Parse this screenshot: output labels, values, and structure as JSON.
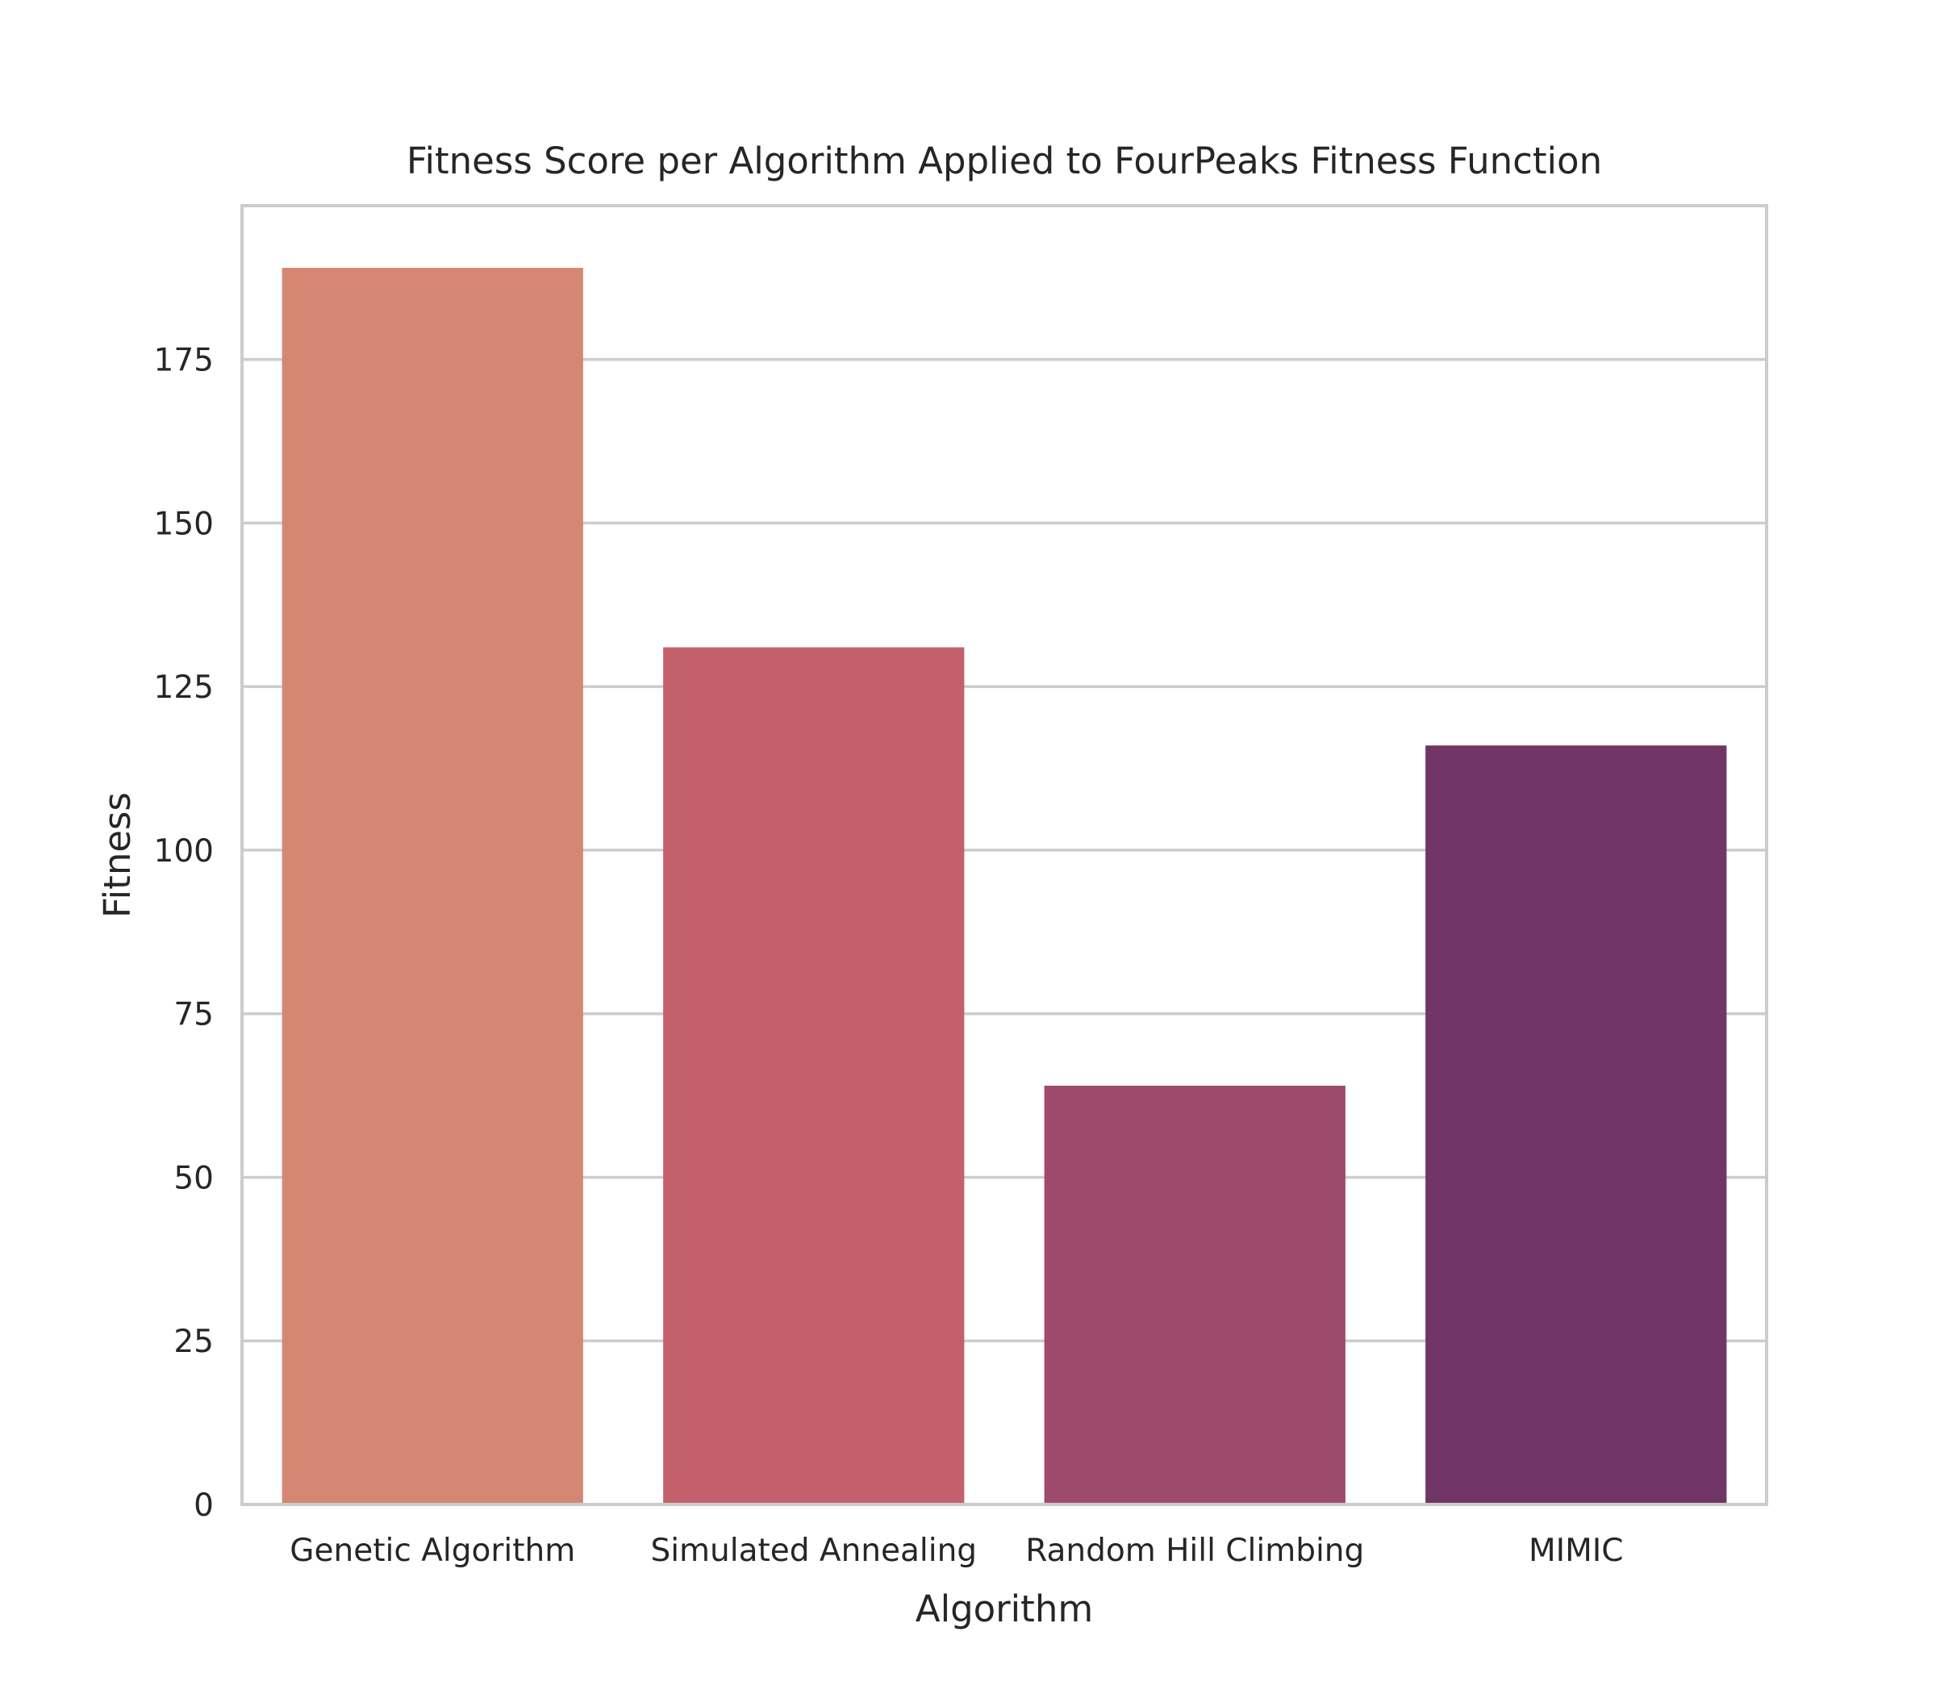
{
  "chart_data": {
    "type": "bar",
    "title": "Fitness Score per Algorithm Applied to FourPeaks Fitness Function",
    "xlabel": "Algorithm",
    "ylabel": "Fitness",
    "categories": [
      "Genetic Algorithm",
      "Simulated Annealing",
      "Random Hill Climbing",
      "MIMIC"
    ],
    "values": [
      189,
      131,
      64,
      116
    ],
    "colors": [
      "#d58776",
      "#c4606b",
      "#9e4a6d",
      "#713665"
    ],
    "ylim": [
      0,
      198.5
    ],
    "yticks": [
      0,
      25,
      50,
      75,
      100,
      125,
      150,
      175
    ],
    "grid": true,
    "frame_color": "#cccccc",
    "grid_color": "#cccccc"
  }
}
